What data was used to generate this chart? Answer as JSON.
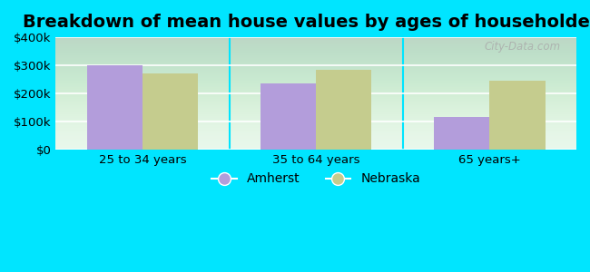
{
  "title": "Breakdown of mean house values by ages of householders",
  "categories": [
    "25 to 34 years",
    "35 to 64 years",
    "65 years+"
  ],
  "amherst_values": [
    300000,
    235000,
    115000
  ],
  "nebraska_values": [
    270000,
    285000,
    245000
  ],
  "amherst_color": "#b39ddb",
  "nebraska_color": "#c5cc8e",
  "bar_width": 0.32,
  "ylim": [
    0,
    400000
  ],
  "yticks": [
    0,
    100000,
    200000,
    300000,
    400000
  ],
  "ytick_labels": [
    "$0",
    "$100k",
    "$200k",
    "$300k",
    "$400k"
  ],
  "outer_bg": "#00e5ff",
  "plot_bg": "#e6f7ea",
  "title_fontsize": 14,
  "axis_fontsize": 9.5,
  "legend_labels": [
    "Amherst",
    "Nebraska"
  ],
  "watermark": "City-Data.com"
}
